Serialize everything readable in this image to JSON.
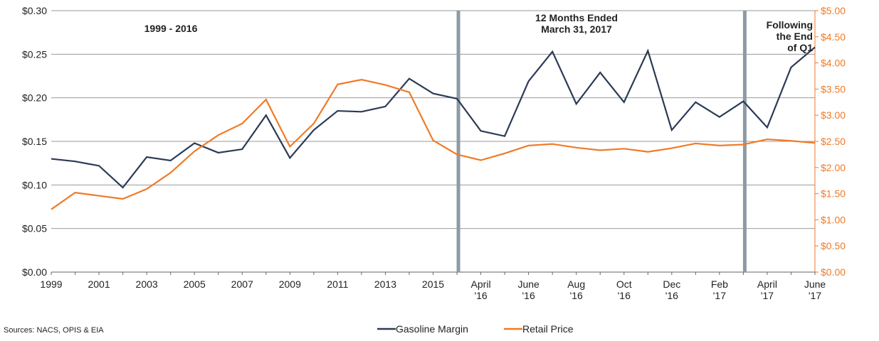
{
  "chart_data": {
    "type": "line",
    "categories": [
      "1999",
      null,
      "2001",
      null,
      "2003",
      null,
      "2005",
      null,
      "2007",
      null,
      "2009",
      null,
      "2011",
      null,
      "2013",
      null,
      "2015",
      null,
      "April '16",
      null,
      "June '16",
      null,
      "Aug '16",
      null,
      "Oct '16",
      null,
      "Dec '16",
      null,
      "Feb '17",
      null,
      "April '17",
      null,
      "June '17"
    ],
    "series": [
      {
        "name": "Gasoline Margin",
        "color": "#2b3a55",
        "axis": "y",
        "values": [
          0.13,
          0.127,
          0.122,
          0.097,
          0.132,
          0.128,
          0.148,
          0.137,
          0.141,
          0.18,
          0.131,
          0.163,
          0.185,
          0.184,
          0.19,
          0.222,
          0.205,
          0.199,
          0.162,
          0.156,
          0.219,
          0.253,
          0.193,
          0.229,
          0.195,
          0.254,
          0.163,
          0.195,
          0.178,
          0.196,
          0.166,
          0.235,
          0.258
        ]
      },
      {
        "name": "Retail Price",
        "color": "#f07a26",
        "axis": "y2",
        "values": [
          1.2,
          1.52,
          1.46,
          1.4,
          1.59,
          1.9,
          2.31,
          2.62,
          2.84,
          3.3,
          2.4,
          2.84,
          3.59,
          3.68,
          3.58,
          3.44,
          2.52,
          2.25,
          2.14,
          2.27,
          2.42,
          2.45,
          2.38,
          2.33,
          2.36,
          2.3,
          2.37,
          2.46,
          2.42,
          2.44,
          2.54,
          2.51,
          2.47
        ]
      }
    ],
    "ylim": [
      0,
      0.3
    ],
    "yticks": [
      {
        "value": 0,
        "label": "$0.00"
      },
      {
        "value": 0.05,
        "label": "$0.05"
      },
      {
        "value": 0.1,
        "label": "$0.10"
      },
      {
        "value": 0.15,
        "label": "$0.15"
      },
      {
        "value": 0.2,
        "label": "$0.20"
      },
      {
        "value": 0.25,
        "label": "$0.25"
      },
      {
        "value": 0.3,
        "label": "$0.30"
      }
    ],
    "y2lim": [
      0,
      5
    ],
    "y2ticks": [
      {
        "value": 0,
        "label": "$0.00"
      },
      {
        "value": 0.5,
        "label": "$0.50"
      },
      {
        "value": 1,
        "label": "$1.00"
      },
      {
        "value": 1.5,
        "label": "$1.50"
      },
      {
        "value": 2,
        "label": "$2.00"
      },
      {
        "value": 2.5,
        "label": "$2.50"
      },
      {
        "value": 3,
        "label": "$3.00"
      },
      {
        "value": 3.5,
        "label": "$3.50"
      },
      {
        "value": 4,
        "label": "$4.00"
      },
      {
        "value": 4.5,
        "label": "$4.50"
      },
      {
        "value": 5,
        "label": "$5.00"
      }
    ],
    "y2color": "#f07a26",
    "grid": true,
    "legend": "bottom",
    "annotations": [
      [
        "1999 - 2016"
      ],
      [
        "12 Months Ended",
        "March 31, 2017"
      ],
      [
        "Following",
        "the End",
        "of Q1"
      ]
    ],
    "source": "Sources:  NACS, OPIS & EIA"
  }
}
